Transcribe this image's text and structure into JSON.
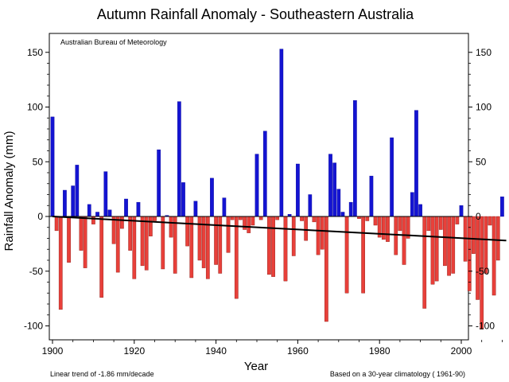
{
  "chart_data": {
    "type": "bar",
    "title": "Autumn Rainfall Anomaly - Southeastern Australia",
    "xlabel": "Year",
    "ylabel": "Rainfall Anomaly (mm)",
    "source_label": "Australian Bureau of Meteorology",
    "trend_note": "Linear  trend of -1.86 mm/decade",
    "climatology_note": "Based on a 30-year climatology ( 1961-90)",
    "xlim": [
      1900,
      2011
    ],
    "ylim": [
      -110,
      160
    ],
    "x_ticks": [
      1900,
      1920,
      1940,
      1960,
      1980,
      2000
    ],
    "y_ticks": [
      -100,
      -50,
      0,
      50,
      100,
      150
    ],
    "colors": {
      "positive": "#1414d2",
      "negative": "#e8403a",
      "trend": "#000000"
    },
    "trend_line": {
      "start": [
        1900,
        0
      ],
      "end": [
        2011,
        -22
      ]
    },
    "years": [
      1900,
      1901,
      1902,
      1903,
      1904,
      1905,
      1906,
      1907,
      1908,
      1909,
      1910,
      1911,
      1912,
      1913,
      1914,
      1915,
      1916,
      1917,
      1918,
      1919,
      1920,
      1921,
      1922,
      1923,
      1924,
      1925,
      1926,
      1927,
      1928,
      1929,
      1930,
      1931,
      1932,
      1933,
      1934,
      1935,
      1936,
      1937,
      1938,
      1939,
      1940,
      1941,
      1942,
      1943,
      1944,
      1945,
      1946,
      1947,
      1948,
      1949,
      1950,
      1951,
      1952,
      1953,
      1954,
      1955,
      1956,
      1957,
      1958,
      1959,
      1960,
      1961,
      1962,
      1963,
      1964,
      1965,
      1966,
      1967,
      1968,
      1969,
      1970,
      1971,
      1972,
      1973,
      1974,
      1975,
      1976,
      1977,
      1978,
      1979,
      1980,
      1981,
      1982,
      1983,
      1984,
      1985,
      1986,
      1987,
      1988,
      1989,
      1990,
      1991,
      1992,
      1993,
      1994,
      1995,
      1996,
      1997,
      1998,
      1999,
      2000,
      2001,
      2002,
      2003,
      2004,
      2005,
      2006,
      2007,
      2008,
      2009,
      2010
    ],
    "values": [
      91,
      -13,
      -85,
      24,
      -42,
      28,
      47,
      -31,
      -47,
      11,
      -7,
      4,
      -74,
      41,
      6,
      -25,
      -51,
      -11,
      16,
      -31,
      -57,
      13,
      -45,
      -49,
      -18,
      -4,
      61,
      -48,
      1,
      -19,
      -52,
      105,
      31,
      -27,
      -56,
      14,
      -40,
      -47,
      -57,
      35,
      -44,
      -52,
      17,
      -33,
      -3,
      -75,
      -3,
      -12,
      -15,
      -8,
      57,
      -3,
      78,
      -53,
      -55,
      -3,
      153,
      -59,
      2,
      -36,
      48,
      -4,
      -22,
      20,
      -5,
      -35,
      -30,
      -96,
      57,
      49,
      25,
      4,
      -70,
      13,
      106,
      -2,
      -70,
      -4,
      37,
      -8,
      -19,
      -21,
      -23,
      72,
      -35,
      -13,
      -44,
      -20,
      22,
      97,
      11,
      -84,
      -13,
      -62,
      -59,
      -12,
      -45,
      -54,
      -52,
      -7,
      10,
      -41,
      -68,
      -34,
      -76,
      -103,
      -52,
      -8,
      -72,
      -40,
      18
    ]
  }
}
